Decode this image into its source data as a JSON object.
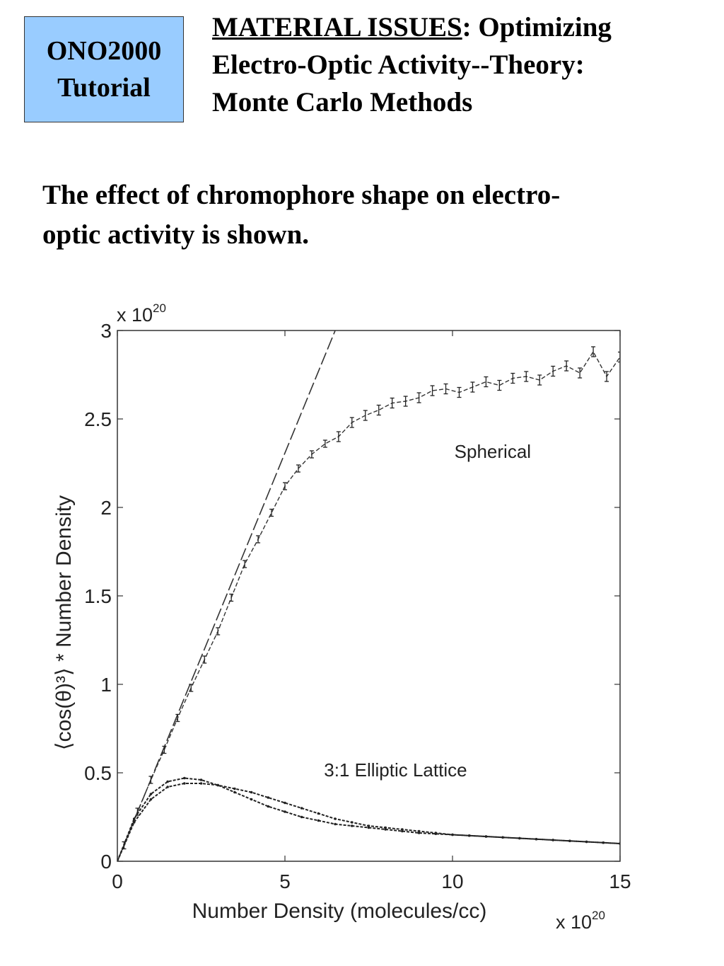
{
  "badge": {
    "line1": "ONO2000",
    "line2": "Tutorial"
  },
  "header": {
    "title_underlined": "MATERIAL ISSUES",
    "title_rest_line1": ":  Optimizing",
    "title_line2": "Electro-Optic Activity--Theory:",
    "title_line3": "Monte Carlo Methods"
  },
  "intro": {
    "line1": "The effect of chromophore shape on electro-",
    "line2": "optic activity is shown."
  },
  "chart_data": {
    "type": "line",
    "xlabel": "Number Density (molecules/cc)",
    "ylabel": "⟨cos(θ)³⟩ * Number Density",
    "x_multiplier": "x 10",
    "x_multiplier_exp": "20",
    "y_multiplier": "x 10",
    "y_multiplier_exp": "20",
    "xlim": [
      0,
      15
    ],
    "ylim": [
      0,
      3
    ],
    "xticks": [
      0,
      5,
      10,
      15
    ],
    "xtick_labels": [
      "0",
      "5",
      "10",
      "15"
    ],
    "yticks": [
      0,
      0.5,
      1,
      1.5,
      2,
      2.5,
      3
    ],
    "ytick_labels": [
      "0",
      "0.5",
      "1",
      "1.5",
      "2",
      "2.5",
      "3"
    ],
    "grid": false,
    "annotations": [
      {
        "text": "Spherical",
        "x": 11.2,
        "y": 2.28
      },
      {
        "text": "3:1 Elliptic Lattice",
        "x": 8.3,
        "y": 0.48
      }
    ],
    "series": [
      {
        "style": "dashed",
        "x": [
          0,
          6.5
        ],
        "y": [
          0,
          3.0
        ]
      },
      {
        "style": "errorbar",
        "x": [
          0.2,
          0.6,
          1.0,
          1.4,
          1.8,
          2.2,
          2.6,
          3.0,
          3.4,
          3.8,
          4.2,
          4.6,
          5.0,
          5.4,
          5.8,
          6.2,
          6.6,
          7.0,
          7.4,
          7.8,
          8.2,
          8.6,
          9.0,
          9.4,
          9.8,
          10.2,
          10.6,
          11.0,
          11.4,
          11.8,
          12.2,
          12.6,
          13.0,
          13.4,
          13.8,
          14.2,
          14.6,
          15.0
        ],
        "y": [
          0.09,
          0.28,
          0.46,
          0.63,
          0.81,
          0.98,
          1.14,
          1.3,
          1.49,
          1.68,
          1.82,
          1.97,
          2.12,
          2.22,
          2.3,
          2.36,
          2.4,
          2.48,
          2.52,
          2.55,
          2.59,
          2.6,
          2.62,
          2.66,
          2.67,
          2.65,
          2.68,
          2.71,
          2.69,
          2.73,
          2.74,
          2.72,
          2.77,
          2.8,
          2.76,
          2.88,
          2.74,
          2.85
        ]
      },
      {
        "style": "dotted",
        "x": [
          0,
          0.5,
          1.0,
          1.5,
          2.0,
          2.5,
          3.0,
          3.5,
          4.0,
          4.5,
          5.0,
          5.5,
          6.0,
          6.5,
          7.0,
          7.5,
          8.0,
          8.5,
          9.0,
          9.5,
          10.0,
          10.5,
          11.0,
          11.5,
          12.0,
          12.5,
          13.0,
          13.5,
          14.0,
          14.5,
          15.0
        ],
        "y": [
          0,
          0.24,
          0.38,
          0.45,
          0.47,
          0.46,
          0.43,
          0.39,
          0.35,
          0.31,
          0.28,
          0.25,
          0.23,
          0.21,
          0.2,
          0.19,
          0.18,
          0.17,
          0.16,
          0.155,
          0.15,
          0.145,
          0.14,
          0.135,
          0.13,
          0.125,
          0.12,
          0.115,
          0.11,
          0.105,
          0.1
        ]
      },
      {
        "style": "dotted",
        "x": [
          0,
          0.5,
          1.0,
          1.5,
          2.0,
          2.5,
          3.0,
          3.5,
          4.0,
          4.5,
          5.0,
          5.5,
          6.0,
          6.5,
          7.0,
          7.5,
          8.0,
          8.5,
          9.0,
          9.5,
          10.0,
          10.5,
          11.0,
          11.5,
          12.0,
          12.5,
          13.0,
          13.5,
          14.0,
          14.5,
          15.0
        ],
        "y": [
          0,
          0.22,
          0.35,
          0.42,
          0.44,
          0.44,
          0.43,
          0.41,
          0.39,
          0.36,
          0.33,
          0.3,
          0.27,
          0.24,
          0.22,
          0.2,
          0.19,
          0.18,
          0.17,
          0.16,
          0.15,
          0.145,
          0.14,
          0.135,
          0.13,
          0.125,
          0.12,
          0.115,
          0.11,
          0.105,
          0.1
        ]
      }
    ]
  }
}
